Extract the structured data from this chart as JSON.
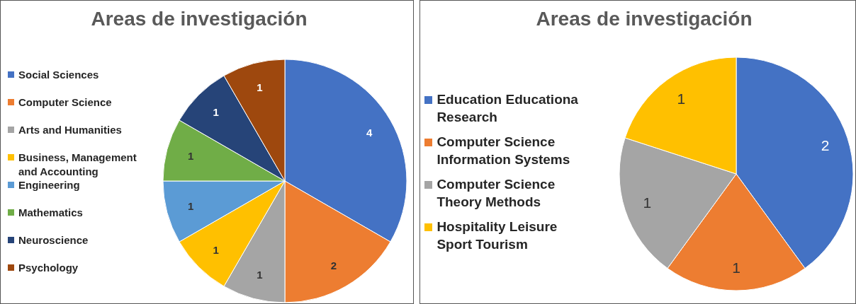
{
  "chart_data": [
    {
      "type": "pie",
      "title": "Areas de investigación",
      "categories": [
        "Social Sciences",
        "Computer Science",
        "Arts and Humanities",
        "Business, Management and Accounting",
        "Engineering",
        "Mathematics",
        "Neuroscience",
        "Psychology"
      ],
      "values": [
        4,
        2,
        1,
        1,
        1,
        1,
        1,
        1
      ],
      "colors": [
        "#4472c4",
        "#ed7d31",
        "#a5a5a5",
        "#ffc000",
        "#5b9bd5",
        "#70ad47",
        "#264478",
        "#9e480e"
      ],
      "data_labels": true,
      "legend": "left"
    },
    {
      "type": "pie",
      "title": "Areas de investigación",
      "categories": [
        "Education Educationa Research",
        "Computer Science Information Systems",
        "Computer Science Theory Methods",
        "Hospitality Leisure Sport Tourism"
      ],
      "values": [
        2,
        1,
        1,
        1
      ],
      "colors": [
        "#4472c4",
        "#ed7d31",
        "#a5a5a5",
        "#ffc000"
      ],
      "data_labels": true,
      "legend": "left"
    }
  ]
}
